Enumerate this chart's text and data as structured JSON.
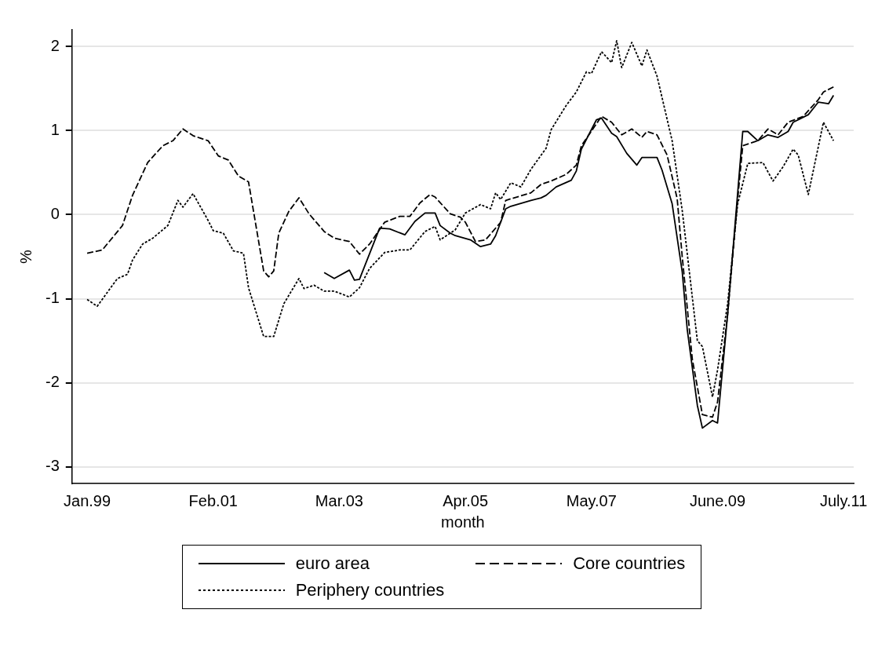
{
  "chart_data": {
    "type": "line",
    "xlabel": "month",
    "ylabel": "%",
    "xlim": [
      "1998-10",
      "2011-09"
    ],
    "ylim": [
      -3.2,
      2.2
    ],
    "xticks": [
      {
        "value": "1999-01",
        "label": "Jan.99"
      },
      {
        "value": "2001-02",
        "label": "Feb.01"
      },
      {
        "value": "2003-03",
        "label": "Mar.03"
      },
      {
        "value": "2005-04",
        "label": "Apr.05"
      },
      {
        "value": "2007-05",
        "label": "May.07"
      },
      {
        "value": "2009-06",
        "label": "June.09"
      },
      {
        "value": "2011-07",
        "label": "July.11"
      }
    ],
    "yticks": [
      -3,
      -2,
      -1,
      0,
      1,
      2
    ],
    "grid": "y",
    "legend": "bottom",
    "marker": "none",
    "series": [
      {
        "name": "euro area",
        "color": "#000000",
        "line_style": "solid",
        "x": [
          "2002-12",
          "2003-02",
          "2003-05",
          "2003-06",
          "2003-07",
          "2003-11",
          "2004-01",
          "2004-04",
          "2004-06",
          "2004-08",
          "2004-10",
          "2004-11",
          "2005-01",
          "2005-02",
          "2005-05",
          "2005-07",
          "2005-09",
          "2005-10",
          "2005-12",
          "2006-01",
          "2006-05",
          "2006-07",
          "2006-08",
          "2006-10",
          "2007-01",
          "2007-02",
          "2007-03",
          "2007-06",
          "2007-07",
          "2007-09",
          "2007-10",
          "2007-12",
          "2008-02",
          "2008-03",
          "2008-06",
          "2008-07",
          "2008-09",
          "2008-11",
          "2008-12",
          "2009-02",
          "2009-03",
          "2009-05",
          "2009-06",
          "2009-08",
          "2009-11",
          "2009-12",
          "2010-02",
          "2010-04",
          "2010-06",
          "2010-08",
          "2010-09",
          "2010-12",
          "2011-02",
          "2011-04",
          "2011-05"
        ],
        "values": [
          -0.69,
          -0.76,
          -0.66,
          -0.78,
          -0.77,
          -0.16,
          -0.17,
          -0.24,
          -0.08,
          0.02,
          0.02,
          -0.13,
          -0.22,
          -0.25,
          -0.3,
          -0.38,
          -0.35,
          -0.25,
          0.07,
          0.1,
          0.17,
          0.2,
          0.23,
          0.33,
          0.41,
          0.52,
          0.78,
          1.13,
          1.15,
          0.97,
          0.93,
          0.73,
          0.59,
          0.68,
          0.68,
          0.53,
          0.13,
          -0.68,
          -1.37,
          -2.27,
          -2.54,
          -2.45,
          -2.48,
          -1.19,
          0.99,
          0.99,
          0.88,
          0.95,
          0.92,
          0.99,
          1.1,
          1.19,
          1.34,
          1.32,
          1.42
        ]
      },
      {
        "name": "Core countries",
        "color": "#000000",
        "line_style": "dashed",
        "x": [
          "1999-01",
          "1999-04",
          "1999-08",
          "1999-10",
          "2000-01",
          "2000-04",
          "2000-06",
          "2000-08",
          "2000-10",
          "2001-01",
          "2001-03",
          "2001-05",
          "2001-07",
          "2001-09",
          "2001-12",
          "2002-01",
          "2002-02",
          "2002-03",
          "2002-05",
          "2002-07",
          "2002-09",
          "2002-12",
          "2003-02",
          "2003-05",
          "2003-07",
          "2003-09",
          "2003-12",
          "2004-03",
          "2004-05",
          "2004-07",
          "2004-09",
          "2004-10",
          "2005-01",
          "2005-03",
          "2005-04",
          "2005-06",
          "2005-08",
          "2005-11",
          "2005-12",
          "2006-05",
          "2006-07",
          "2006-09",
          "2006-12",
          "2007-02",
          "2007-03",
          "2007-07",
          "2007-09",
          "2007-11",
          "2008-01",
          "2008-03",
          "2008-04",
          "2008-06",
          "2008-08",
          "2008-10",
          "2008-11",
          "2009-01",
          "2009-03",
          "2009-05",
          "2009-06",
          "2009-08",
          "2009-10",
          "2009-11",
          "2010-02",
          "2010-04",
          "2010-06",
          "2010-08",
          "2010-11",
          "2011-02",
          "2011-03",
          "2011-05"
        ],
        "values": [
          -0.46,
          -0.42,
          -0.13,
          0.23,
          0.62,
          0.82,
          0.88,
          1.02,
          0.94,
          0.88,
          0.7,
          0.65,
          0.46,
          0.39,
          -0.67,
          -0.74,
          -0.67,
          -0.22,
          0.04,
          0.2,
          0.01,
          -0.2,
          -0.28,
          -0.32,
          -0.47,
          -0.35,
          -0.09,
          -0.02,
          -0.02,
          0.14,
          0.24,
          0.21,
          0.01,
          -0.03,
          -0.09,
          -0.32,
          -0.3,
          -0.09,
          0.17,
          0.26,
          0.36,
          0.4,
          0.48,
          0.59,
          0.82,
          1.17,
          1.1,
          0.95,
          1.02,
          0.92,
          0.99,
          0.95,
          0.71,
          0.19,
          -0.5,
          -1.72,
          -2.38,
          -2.41,
          -2.23,
          -1.19,
          0.19,
          0.82,
          0.88,
          1.02,
          0.95,
          1.1,
          1.17,
          1.37,
          1.46,
          1.52
        ]
      },
      {
        "name": "Periphery countries",
        "color": "#000000",
        "line_style": "dotted",
        "x": [
          "1999-01",
          "1999-03",
          "1999-07",
          "1999-09",
          "1999-10",
          "1999-12",
          "2000-02",
          "2000-05",
          "2000-07",
          "2000-08",
          "2000-10",
          "2001-01",
          "2001-02",
          "2001-04",
          "2001-06",
          "2001-08",
          "2001-09",
          "2001-12",
          "2002-02",
          "2002-04",
          "2002-07",
          "2002-08",
          "2002-10",
          "2002-12",
          "2003-02",
          "2003-05",
          "2003-07",
          "2003-09",
          "2003-12",
          "2004-03",
          "2004-05",
          "2004-08",
          "2004-10",
          "2004-11",
          "2005-02",
          "2005-04",
          "2005-07",
          "2005-09",
          "2005-10",
          "2005-11",
          "2006-01",
          "2006-03",
          "2006-05",
          "2006-08",
          "2006-09",
          "2006-12",
          "2007-02",
          "2007-04",
          "2007-05",
          "2007-07",
          "2007-09",
          "2007-10",
          "2007-11",
          "2008-01",
          "2008-03",
          "2008-04",
          "2008-06",
          "2008-09",
          "2008-11",
          "2009-02",
          "2009-03",
          "2009-05",
          "2009-06",
          "2009-08",
          "2009-10",
          "2009-12",
          "2010-03",
          "2010-05",
          "2010-07",
          "2010-09",
          "2010-10",
          "2010-12",
          "2011-03",
          "2011-05"
        ],
        "values": [
          -1.01,
          -1.09,
          -0.76,
          -0.71,
          -0.54,
          -0.35,
          -0.28,
          -0.13,
          0.17,
          0.09,
          0.25,
          -0.07,
          -0.19,
          -0.22,
          -0.43,
          -0.46,
          -0.87,
          -1.45,
          -1.45,
          -1.06,
          -0.76,
          -0.88,
          -0.84,
          -0.91,
          -0.91,
          -0.98,
          -0.87,
          -0.64,
          -0.45,
          -0.42,
          -0.42,
          -0.2,
          -0.14,
          -0.3,
          -0.18,
          0.02,
          0.12,
          0.07,
          0.26,
          0.18,
          0.38,
          0.33,
          0.54,
          0.79,
          1.01,
          1.3,
          1.46,
          1.7,
          1.68,
          1.94,
          1.81,
          2.07,
          1.75,
          2.05,
          1.77,
          1.96,
          1.65,
          0.88,
          0.05,
          -1.5,
          -1.57,
          -2.17,
          -1.85,
          -1.06,
          0.13,
          0.61,
          0.62,
          0.4,
          0.57,
          0.78,
          0.71,
          0.24,
          1.1,
          0.88
        ]
      }
    ]
  }
}
